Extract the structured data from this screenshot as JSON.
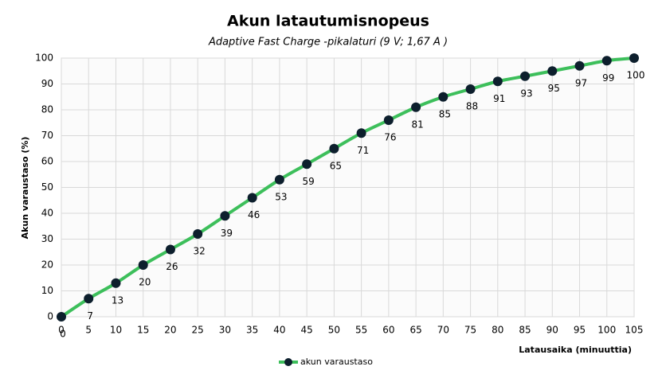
{
  "chart_data": {
    "type": "line",
    "title": "Akun latautumisnopeus",
    "subtitle": "Adaptive Fast Charge -pikalaturi  (9 V; 1,67 A )",
    "x_label": "Latausaika  (minuuttia)",
    "y_label": "Akun varaustaso  (%)",
    "x": [
      0,
      5,
      10,
      15,
      20,
      25,
      30,
      35,
      40,
      45,
      50,
      55,
      60,
      65,
      70,
      75,
      80,
      85,
      90,
      95,
      100,
      105
    ],
    "series": [
      {
        "name": "akun varaustaso",
        "color": "#3dbf5b",
        "marker_color": "#0d1f2d",
        "values": [
          0,
          7,
          13,
          20,
          26,
          32,
          39,
          46,
          53,
          59,
          65,
          71,
          76,
          81,
          85,
          88,
          91,
          93,
          95,
          97,
          99,
          100
        ]
      }
    ],
    "xlim": [
      0,
      105
    ],
    "xticks": [
      0,
      5,
      10,
      15,
      20,
      25,
      30,
      35,
      40,
      45,
      50,
      55,
      60,
      65,
      70,
      75,
      80,
      85,
      90,
      95,
      100,
      105
    ],
    "ylim": [
      0,
      100
    ],
    "yticks": [
      0,
      10,
      20,
      30,
      40,
      50,
      60,
      70,
      80,
      90,
      100
    ],
    "grid": true,
    "legend": "bottom"
  }
}
